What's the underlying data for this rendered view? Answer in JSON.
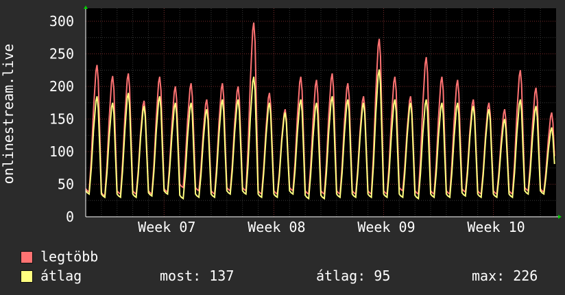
{
  "chart_data": {
    "type": "line",
    "ylabel": "onlinestream.live",
    "ylim": [
      0,
      320
    ],
    "yticks": [
      0,
      50,
      100,
      150,
      200,
      250,
      300
    ],
    "xticks": [
      "Week 07",
      "Week 08",
      "Week 09",
      "Week 10"
    ],
    "xtick_days": [
      7.0,
      14.0,
      21.0,
      28.0
    ],
    "x_range_days": [
      2.0,
      32.0
    ],
    "grid": true,
    "series": [
      {
        "name": "legtöbb",
        "color": "#ff7373",
        "peaks": [
          233,
          216,
          220,
          178,
          215,
          200,
          205,
          180,
          205,
          200,
          298,
          190,
          165,
          215,
          210,
          220,
          205,
          185,
          273,
          215,
          185,
          245,
          215,
          210,
          180,
          175,
          165,
          225,
          198,
          160
        ],
        "troughs": [
          38,
          32,
          35,
          35,
          35,
          38,
          45,
          40,
          35,
          40,
          40,
          35,
          35,
          40,
          35,
          35,
          35,
          35,
          35,
          35,
          40,
          35,
          35,
          35,
          38,
          35,
          35,
          35,
          40,
          38
        ]
      },
      {
        "name": "átlag",
        "color": "#ffff80",
        "peaks": [
          185,
          175,
          190,
          170,
          185,
          175,
          175,
          165,
          180,
          180,
          215,
          175,
          160,
          180,
          175,
          185,
          180,
          175,
          226,
          180,
          175,
          180,
          175,
          175,
          170,
          165,
          150,
          180,
          170,
          137
        ],
        "troughs": [
          35,
          30,
          30,
          30,
          32,
          35,
          28,
          30,
          30,
          35,
          35,
          30,
          30,
          35,
          28,
          28,
          30,
          30,
          30,
          30,
          30,
          28,
          30,
          30,
          32,
          30,
          30,
          30,
          35,
          35
        ]
      }
    ]
  },
  "legend": {
    "max_label": "legtöbb",
    "avg_label": "átlag",
    "max_color": "#ff7373",
    "avg_color": "#ffff80"
  },
  "stats": {
    "now": "most: 137",
    "avg": "átlag: 95",
    "max": "max: 226"
  }
}
